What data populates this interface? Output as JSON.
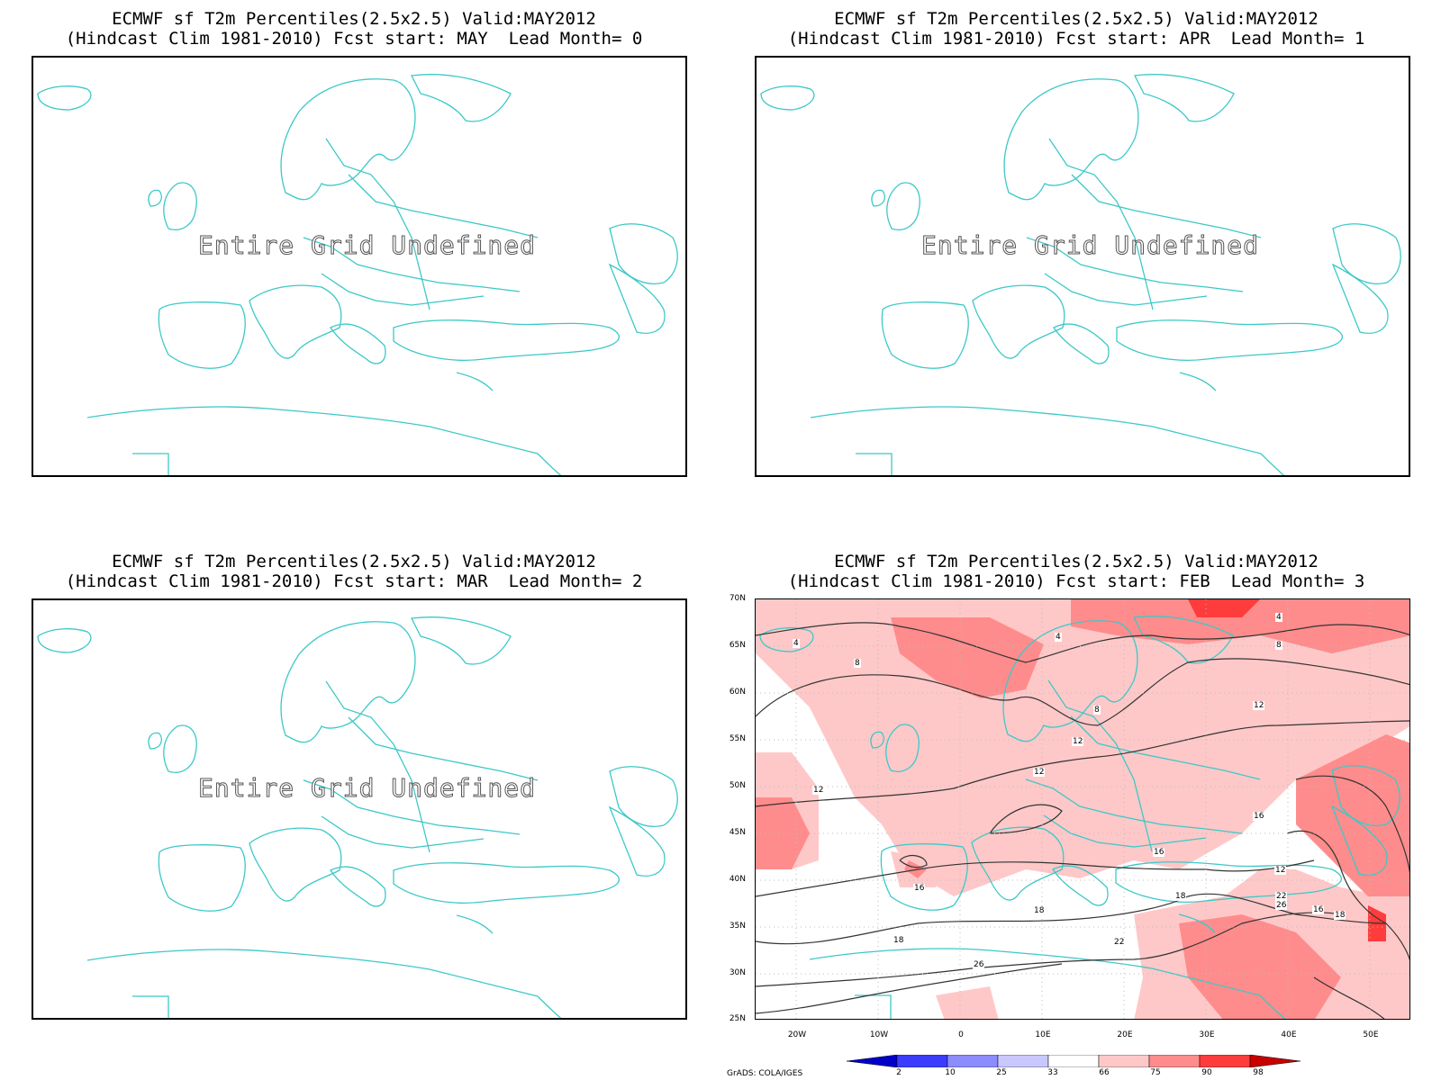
{
  "panels": [
    {
      "title1": "ECMWF sf T2m Percentiles(2.5x2.5) Valid:MAY2012",
      "title2": "(Hindcast Clim 1981-2010) Fcst start: MAY  Lead Month= 0",
      "message": "Entire Grid Undefined"
    },
    {
      "title1": "ECMWF sf T2m Percentiles(2.5x2.5) Valid:MAY2012",
      "title2": "(Hindcast Clim 1981-2010) Fcst start: APR  Lead Month= 1",
      "message": "Entire Grid Undefined"
    },
    {
      "title1": "ECMWF sf T2m Percentiles(2.5x2.5) Valid:MAY2012",
      "title2": "(Hindcast Clim 1981-2010) Fcst start: MAR  Lead Month= 2",
      "message": "Entire Grid Undefined"
    },
    {
      "title1": "ECMWF sf T2m Percentiles(2.5x2.5) Valid:MAY2012",
      "title2": "(Hindcast Clim 1981-2010) Fcst start: FEB  Lead Month= 3",
      "message": ""
    }
  ],
  "map": {
    "lat_labels": [
      "70N",
      "65N",
      "60N",
      "55N",
      "50N",
      "45N",
      "40N",
      "35N",
      "30N",
      "25N"
    ],
    "lon_labels": [
      "20W",
      "10W",
      "0",
      "10E",
      "20E",
      "30E",
      "40E",
      "50E"
    ],
    "coast_color": "#3cc8c8",
    "contour_color": "#333333",
    "contour_labels": [
      "4",
      "4",
      "4",
      "8",
      "8",
      "8",
      "12",
      "12",
      "12",
      "12",
      "12",
      "16",
      "16",
      "16",
      "16",
      "18",
      "18",
      "18",
      "18",
      "22",
      "22",
      "26",
      "26"
    ]
  },
  "colorbar": {
    "labels": [
      "2",
      "10",
      "25",
      "33",
      "66",
      "75",
      "90",
      "98"
    ],
    "colors": [
      "#0000c8",
      "#3c3cff",
      "#8c8cff",
      "#c8c8ff",
      "#ffffff",
      "#ffc8c8",
      "#ff8c8c",
      "#ff3c3c",
      "#c80000"
    ]
  },
  "credit": "GrADS: COLA/IGES"
}
